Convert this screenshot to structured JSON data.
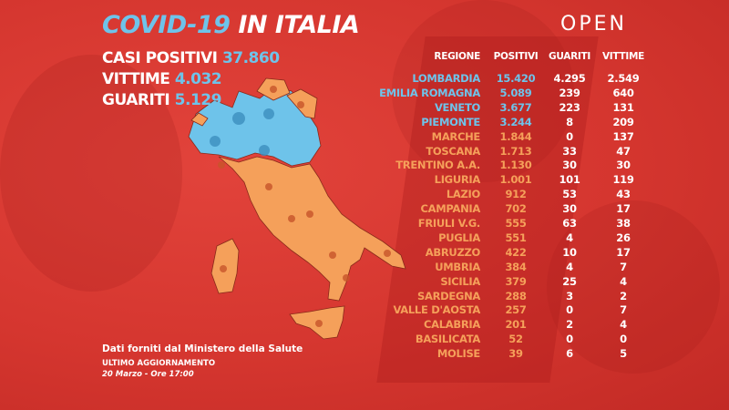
{
  "header": {
    "title_part1": "COVID-19",
    "title_part2": "IN ITALIA",
    "logo": "OPEN"
  },
  "totals": [
    {
      "label": "CASI POSITIVI",
      "value": "37.860"
    },
    {
      "label": "VITTIME",
      "value": "4.032"
    },
    {
      "label": "GUARITI",
      "value": "5.129"
    }
  ],
  "colors": {
    "background": "#d5362f",
    "highlight": "#6ec3ea",
    "regular": "#f5a05a",
    "text": "#ffffff"
  },
  "table": {
    "headers": [
      "REGIONE",
      "POSITIVI",
      "GUARITI",
      "VITTIME"
    ],
    "rows": [
      {
        "regione": "LOMBARDIA",
        "positivi": "15.420",
        "guariti": "4.295",
        "vittime": "2.549",
        "highlight": true
      },
      {
        "regione": "EMILIA ROMAGNA",
        "positivi": "5.089",
        "guariti": "239",
        "vittime": "640",
        "highlight": true
      },
      {
        "regione": "VENETO",
        "positivi": "3.677",
        "guariti": "223",
        "vittime": "131",
        "highlight": true
      },
      {
        "regione": "PIEMONTE",
        "positivi": "3.244",
        "guariti": "8",
        "vittime": "209",
        "highlight": true
      },
      {
        "regione": "MARCHE",
        "positivi": "1.844",
        "guariti": "0",
        "vittime": "137",
        "highlight": false
      },
      {
        "regione": "TOSCANA",
        "positivi": "1.713",
        "guariti": "33",
        "vittime": "47",
        "highlight": false
      },
      {
        "regione": "TRENTINO A.A.",
        "positivi": "1.130",
        "guariti": "30",
        "vittime": "30",
        "highlight": false
      },
      {
        "regione": "LIGURIA",
        "positivi": "1.001",
        "guariti": "101",
        "vittime": "119",
        "highlight": false
      },
      {
        "regione": "LAZIO",
        "positivi": "912",
        "guariti": "53",
        "vittime": "43",
        "highlight": false
      },
      {
        "regione": "CAMPANIA",
        "positivi": "702",
        "guariti": "30",
        "vittime": "17",
        "highlight": false
      },
      {
        "regione": "FRIULI V.G.",
        "positivi": "555",
        "guariti": "63",
        "vittime": "38",
        "highlight": false
      },
      {
        "regione": "PUGLIA",
        "positivi": "551",
        "guariti": "4",
        "vittime": "26",
        "highlight": false
      },
      {
        "regione": "ABRUZZO",
        "positivi": "422",
        "guariti": "10",
        "vittime": "17",
        "highlight": false
      },
      {
        "regione": "UMBRIA",
        "positivi": "384",
        "guariti": "4",
        "vittime": "7",
        "highlight": false
      },
      {
        "regione": "SICILIA",
        "positivi": "379",
        "guariti": "25",
        "vittime": "4",
        "highlight": false
      },
      {
        "regione": "SARDEGNA",
        "positivi": "288",
        "guariti": "3",
        "vittime": "2",
        "highlight": false
      },
      {
        "regione": "VALLE D'AOSTA",
        "positivi": "257",
        "guariti": "0",
        "vittime": "7",
        "highlight": false
      },
      {
        "regione": "CALABRIA",
        "positivi": "201",
        "guariti": "2",
        "vittime": "4",
        "highlight": false
      },
      {
        "regione": "BASILICATA",
        "positivi": "52",
        "guariti": "0",
        "vittime": "0",
        "highlight": false
      },
      {
        "regione": "MOLISE",
        "positivi": "39",
        "guariti": "6",
        "vittime": "5",
        "highlight": false
      }
    ]
  },
  "footer": {
    "source": "Dati forniti dal Ministero della Salute",
    "update_label": "ULTIMO AGGIORNAMENTO",
    "update_date": "20 Marzo - Ore 17:00"
  }
}
